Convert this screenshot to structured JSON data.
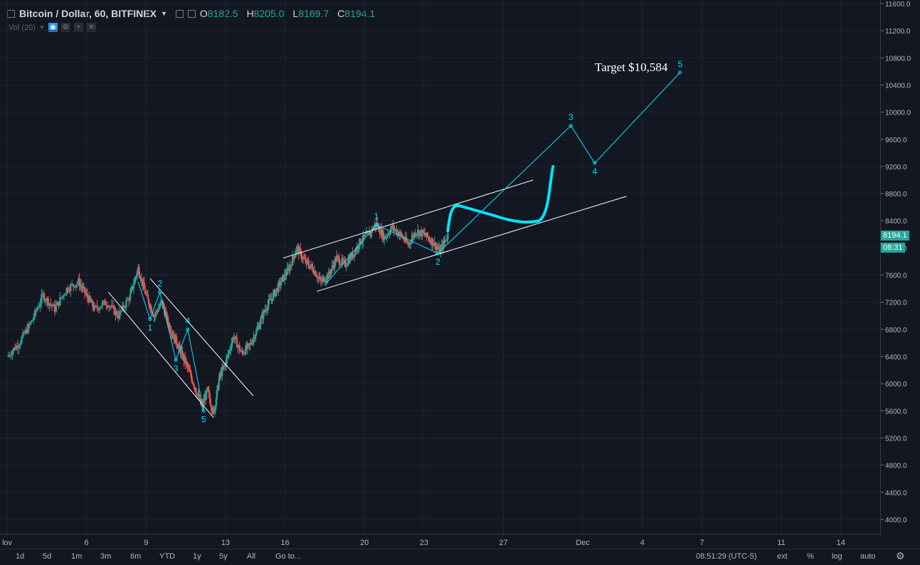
{
  "header": {
    "symbol": "Bitcoin / Dollar, 60, BITFINEX",
    "o_label": "O",
    "o_value": "8182.5",
    "h_label": "H",
    "h_value": "8205.0",
    "l_label": "L",
    "l_value": "8169.7",
    "c_label": "C",
    "c_value": "8194.1",
    "volume_label": "Vol (20)"
  },
  "price_tags": {
    "last_price": "8194.1",
    "countdown": "08:31"
  },
  "bottom_bar": {
    "intervals": [
      "1d",
      "5d",
      "1m",
      "3m",
      "6m",
      "YTD",
      "1y",
      "5y",
      "All"
    ],
    "goto": "Go to...",
    "clock": "08:51:29 (UTC-5)",
    "ext": "ext",
    "percent": "%",
    "log": "log",
    "auto": "auto"
  },
  "colors": {
    "up": "#26a69a",
    "down": "#ef5350",
    "annotation": "#00e5ff",
    "channel": "#ffffff",
    "background": "#131722"
  },
  "chart_data": {
    "type": "candlestick",
    "title": "Bitcoin / Dollar, 60, BITFINEX",
    "ylim": [
      3800,
      11800
    ],
    "y_ticks": [
      4000,
      4400,
      4800,
      5200,
      5600,
      6000,
      6400,
      6800,
      7200,
      7600,
      8000,
      8400,
      8800,
      9200,
      9600,
      10000,
      10400,
      10800,
      11200,
      11600
    ],
    "y_tick_labels": [
      "4000.0",
      "4400.0",
      "4800.0",
      "5200.0",
      "5600.0",
      "6000.0",
      "6400.0",
      "6800.0",
      "7200.0",
      "7600.0",
      "8000.0",
      "8400.0",
      "8800.0",
      "9200.0",
      "9600.0",
      "10000.0",
      "10400.0",
      "10800.0",
      "11200.0",
      "11600.0"
    ],
    "x_tick_labels": [
      "lov",
      "6",
      "9",
      "13",
      "16",
      "20",
      "23",
      "27",
      "Dec",
      "4",
      "7",
      "11",
      "14"
    ],
    "x_tick_days": [
      2,
      6,
      9,
      13,
      16,
      20,
      23,
      27,
      31,
      34,
      37,
      41,
      44
    ],
    "x_start_day": 2,
    "price_path": [
      [
        2,
        6400
      ],
      [
        2.6,
        6600
      ],
      [
        3.2,
        6900
      ],
      [
        3.8,
        7300
      ],
      [
        4.4,
        7100
      ],
      [
        5,
        7400
      ],
      [
        5.6,
        7500
      ],
      [
        6,
        7300
      ],
      [
        6.4,
        7100
      ],
      [
        7,
        7200
      ],
      [
        7.6,
        7000
      ],
      [
        8.2,
        7300
      ],
      [
        8.6,
        7700
      ],
      [
        9,
        7300
      ],
      [
        9.4,
        7000
      ],
      [
        9.8,
        7200
      ],
      [
        10.1,
        6900
      ],
      [
        10.4,
        6700
      ],
      [
        10.7,
        6500
      ],
      [
        11,
        6300
      ],
      [
        11.4,
        6000
      ],
      [
        11.8,
        5650
      ],
      [
        12.1,
        5900
      ],
      [
        12.4,
        5550
      ],
      [
        12.7,
        6100
      ],
      [
        13,
        6300
      ],
      [
        13.4,
        6700
      ],
      [
        13.8,
        6450
      ],
      [
        14.2,
        6550
      ],
      [
        14.6,
        6800
      ],
      [
        15,
        7100
      ],
      [
        15.4,
        7300
      ],
      [
        15.8,
        7500
      ],
      [
        16.2,
        7700
      ],
      [
        16.6,
        8000
      ],
      [
        17,
        7800
      ],
      [
        17.4,
        7700
      ],
      [
        17.8,
        7500
      ],
      [
        18.2,
        7600
      ],
      [
        18.6,
        7850
      ],
      [
        19,
        7750
      ],
      [
        19.4,
        7900
      ],
      [
        19.8,
        8100
      ],
      [
        20.2,
        8200
      ],
      [
        20.6,
        8350
      ],
      [
        21,
        8150
      ],
      [
        21.4,
        8300
      ],
      [
        21.8,
        8200
      ],
      [
        22.2,
        8050
      ],
      [
        22.6,
        8250
      ],
      [
        23,
        8200
      ],
      [
        23.4,
        8100
      ],
      [
        23.8,
        7950
      ],
      [
        24.2,
        8194
      ]
    ],
    "wave_down_labels": [
      {
        "label": "1",
        "day": 9.2,
        "price": 6950
      },
      {
        "label": "2",
        "day": 9.7,
        "price": 7350
      },
      {
        "label": "3",
        "day": 10.5,
        "price": 6350
      },
      {
        "label": "4",
        "day": 11.1,
        "price": 6800
      },
      {
        "label": "5",
        "day": 11.9,
        "price": 5600
      }
    ],
    "wave_up_labels": [
      {
        "label": "1",
        "day": 20.6,
        "price": 8340
      },
      {
        "label": "2",
        "day": 23.7,
        "price": 7920
      },
      {
        "label": "3",
        "day": 30.4,
        "price": 9800
      },
      {
        "label": "4",
        "day": 31.6,
        "price": 9250
      },
      {
        "label": "5",
        "day": 35.9,
        "price": 10584
      }
    ],
    "projected_path": [
      [
        23.7,
        7920
      ],
      [
        30.4,
        9800
      ],
      [
        31.6,
        9250
      ],
      [
        35.9,
        10584
      ]
    ],
    "target_label": "Target $10,584"
  }
}
